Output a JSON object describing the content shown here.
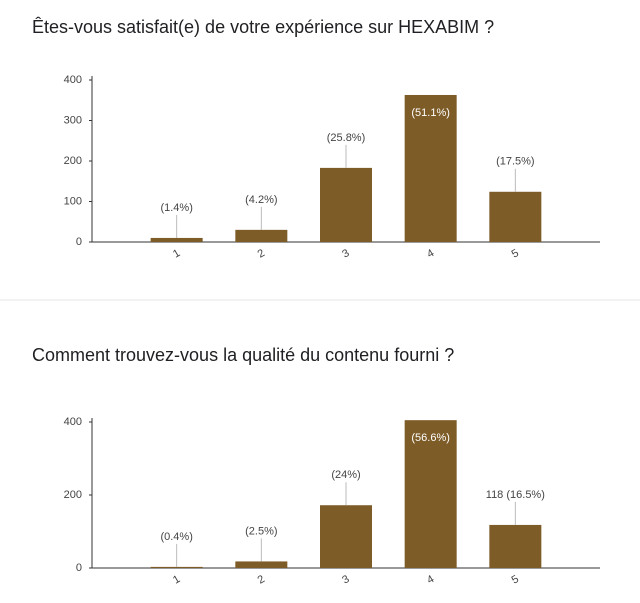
{
  "chart_data": [
    {
      "type": "bar",
      "title": "Êtes-vous satisfait(e) de votre expérience sur HEXABIM ?",
      "categories": [
        "1",
        "2",
        "3",
        "4",
        "5"
      ],
      "values": [
        10,
        30,
        183,
        363,
        124
      ],
      "bar_labels": [
        "(1.4%)",
        "(4.2%)",
        "(25.8%)",
        "(51.1%)",
        "(17.5%)"
      ],
      "color": "#7d5c27",
      "ylim": [
        0,
        400
      ],
      "yticks": [
        0,
        100,
        200,
        300,
        400
      ],
      "grid": false
    },
    {
      "type": "bar",
      "title": "Comment trouvez-vous la qualité du contenu fourni ?",
      "categories": [
        "1",
        "2",
        "3",
        "4",
        "5"
      ],
      "values": [
        3,
        18,
        172,
        405,
        118
      ],
      "bar_labels": [
        "(0.4%)",
        "(2.5%)",
        "(24%)",
        "(56.6%)",
        "118 (16.5%)"
      ],
      "color": "#7d5c27",
      "ylim": [
        0,
        400
      ],
      "yticks": [
        0,
        200,
        400
      ],
      "grid": false
    }
  ]
}
